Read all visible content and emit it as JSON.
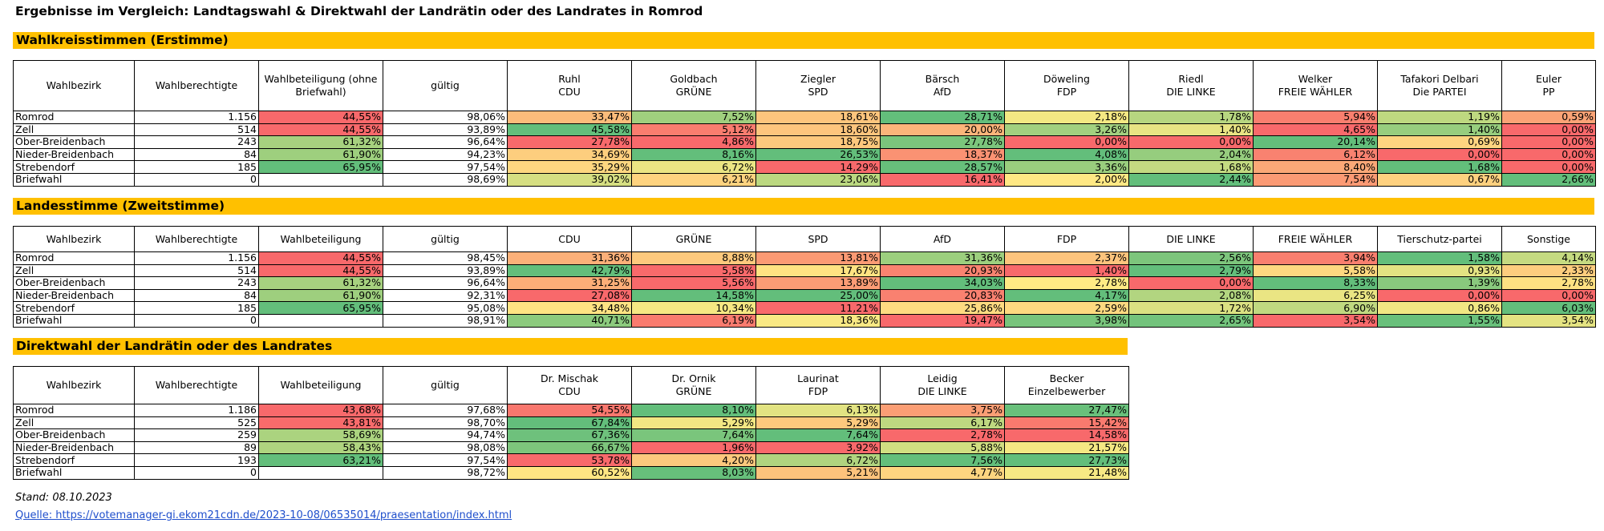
{
  "title": "Ergebnisse im Vergleich: Landtagswahl & Direktwahl der Landrätin oder des Landrates in Romrod",
  "colors": {
    "section_bar": "#ffc000",
    "scale_low": "#f8696b",
    "scale_mid": "#ffeb84",
    "scale_high": "#63be7b"
  },
  "sections": [
    {
      "title": "Wahlkreisstimmen (Erstimme)",
      "columns": [
        {
          "line1": "Wahlbezirk",
          "line2": ""
        },
        {
          "line1": "Wahlberechtigte",
          "line2": ""
        },
        {
          "line1": "Wahlbeteiligung (ohne",
          "line2": "Briefwahl)"
        },
        {
          "line1": "gültig",
          "line2": ""
        },
        {
          "line1": "Ruhl",
          "line2": "CDU"
        },
        {
          "line1": "Goldbach",
          "line2": "GRÜNE"
        },
        {
          "line1": "Ziegler",
          "line2": "SPD"
        },
        {
          "line1": "Bärsch",
          "line2": "AfD"
        },
        {
          "line1": "Döweling",
          "line2": "FDP"
        },
        {
          "line1": "Riedl",
          "line2": "DIE LINKE"
        },
        {
          "line1": "Welker",
          "line2": "FREIE WÄHLER"
        },
        {
          "line1": "Tafakori Delbari",
          "line2": "Die PARTEI"
        },
        {
          "line1": "Euler",
          "line2": "PP"
        }
      ],
      "rows": [
        [
          "Romrod",
          "1.156",
          "44,55%",
          "98,06%",
          "33,47%",
          "7,52%",
          "18,61%",
          "28,71%",
          "2,18%",
          "1,78%",
          "5,94%",
          "1,19%",
          "0,59%"
        ],
        [
          "Zell",
          "514",
          "44,55%",
          "93,89%",
          "45,58%",
          "5,12%",
          "18,60%",
          "20,00%",
          "3,26%",
          "1,40%",
          "4,65%",
          "1,40%",
          "0,00%"
        ],
        [
          "Ober-Breidenbach",
          "243",
          "61,32%",
          "96,64%",
          "27,78%",
          "4,86%",
          "18,75%",
          "27,78%",
          "0,00%",
          "0,00%",
          "20,14%",
          "0,69%",
          "0,00%"
        ],
        [
          "Nieder-Breidenbach",
          "84",
          "61,90%",
          "94,23%",
          "34,69%",
          "8,16%",
          "26,53%",
          "18,37%",
          "4,08%",
          "2,04%",
          "6,12%",
          "0,00%",
          "0,00%"
        ],
        [
          "Strebendorf",
          "185",
          "65,95%",
          "97,54%",
          "35,29%",
          "6,72%",
          "14,29%",
          "28,57%",
          "3,36%",
          "1,68%",
          "8,40%",
          "1,68%",
          "0,00%"
        ],
        [
          "Briefwahl",
          "0",
          "",
          "98,69%",
          "39,02%",
          "6,21%",
          "23,06%",
          "16,41%",
          "2,00%",
          "2,44%",
          "7,54%",
          "0,67%",
          "2,66%"
        ]
      ]
    },
    {
      "title": "Landesstimme (Zweitstimme)",
      "columns": [
        {
          "line1": "Wahlbezirk",
          "line2": ""
        },
        {
          "line1": "Wahlberechtigte",
          "line2": ""
        },
        {
          "line1": "Wahlbeteiligung",
          "line2": ""
        },
        {
          "line1": "gültig",
          "line2": ""
        },
        {
          "line1": "CDU",
          "line2": ""
        },
        {
          "line1": "GRÜNE",
          "line2": ""
        },
        {
          "line1": "SPD",
          "line2": ""
        },
        {
          "line1": "AfD",
          "line2": ""
        },
        {
          "line1": "FDP",
          "line2": ""
        },
        {
          "line1": "DIE LINKE",
          "line2": ""
        },
        {
          "line1": "FREIE WÄHLER",
          "line2": ""
        },
        {
          "line1": "Tierschutz-partei",
          "line2": ""
        },
        {
          "line1": "Sonstige",
          "line2": ""
        }
      ],
      "rows": [
        [
          "Romrod",
          "1.156",
          "44,55%",
          "98,45%",
          "31,36%",
          "8,88%",
          "13,81%",
          "31,36%",
          "2,37%",
          "2,56%",
          "3,94%",
          "1,58%",
          "4,14%"
        ],
        [
          "Zell",
          "514",
          "44,55%",
          "93,89%",
          "42,79%",
          "5,58%",
          "17,67%",
          "20,93%",
          "1,40%",
          "2,79%",
          "5,58%",
          "0,93%",
          "2,33%"
        ],
        [
          "Ober-Breidenbach",
          "243",
          "61,32%",
          "96,64%",
          "31,25%",
          "5,56%",
          "13,89%",
          "34,03%",
          "2,78%",
          "0,00%",
          "8,33%",
          "1,39%",
          "2,78%"
        ],
        [
          "Nieder-Breidenbach",
          "84",
          "61,90%",
          "92,31%",
          "27,08%",
          "14,58%",
          "25,00%",
          "20,83%",
          "4,17%",
          "2,08%",
          "6,25%",
          "0,00%",
          "0,00%"
        ],
        [
          "Strebendorf",
          "185",
          "65,95%",
          "95,08%",
          "34,48%",
          "10,34%",
          "11,21%",
          "25,86%",
          "2,59%",
          "1,72%",
          "6,90%",
          "0,86%",
          "6,03%"
        ],
        [
          "Briefwahl",
          "0",
          "",
          "98,91%",
          "40,71%",
          "6,19%",
          "18,36%",
          "19,47%",
          "3,98%",
          "2,65%",
          "3,54%",
          "1,55%",
          "3,54%"
        ]
      ]
    },
    {
      "title": "Direktwahl der Landrätin oder des Landrates",
      "columns": [
        {
          "line1": "Wahlbezirk",
          "line2": ""
        },
        {
          "line1": "Wahlberechtigte",
          "line2": ""
        },
        {
          "line1": "Wahlbeteiligung",
          "line2": ""
        },
        {
          "line1": "gültig",
          "line2": ""
        },
        {
          "line1": "Dr. Mischak",
          "line2": "CDU"
        },
        {
          "line1": "Dr. Ornik",
          "line2": "GRÜNE"
        },
        {
          "line1": "Laurinat",
          "line2": "FDP"
        },
        {
          "line1": "Leidig",
          "line2": "DIE LINKE"
        },
        {
          "line1": "Becker",
          "line2": "Einzelbewerber"
        }
      ],
      "rows": [
        [
          "Romrod",
          "1.186",
          "43,68%",
          "97,68%",
          "54,55%",
          "8,10%",
          "6,13%",
          "3,75%",
          "27,47%"
        ],
        [
          "Zell",
          "525",
          "43,81%",
          "98,70%",
          "67,84%",
          "5,29%",
          "5,29%",
          "6,17%",
          "15,42%"
        ],
        [
          "Ober-Breidenbach",
          "259",
          "58,69%",
          "94,74%",
          "67,36%",
          "7,64%",
          "7,64%",
          "2,78%",
          "14,58%"
        ],
        [
          "Nieder-Breidenbach",
          "89",
          "58,43%",
          "98,08%",
          "66,67%",
          "1,96%",
          "3,92%",
          "5,88%",
          "21,57%"
        ],
        [
          "Strebendorf",
          "193",
          "63,21%",
          "97,54%",
          "53,78%",
          "4,20%",
          "6,72%",
          "7,56%",
          "27,73%"
        ],
        [
          "Briefwahl",
          "0",
          "",
          "98,72%",
          "60,52%",
          "8,03%",
          "5,21%",
          "4,77%",
          "21,48%"
        ]
      ]
    }
  ],
  "footer": {
    "stand": "Stand: 08.10.2023",
    "source": "Quelle: https://votemanager-gi.ekom21cdn.de/2023-10-08/06535014/praesentation/index.html"
  }
}
